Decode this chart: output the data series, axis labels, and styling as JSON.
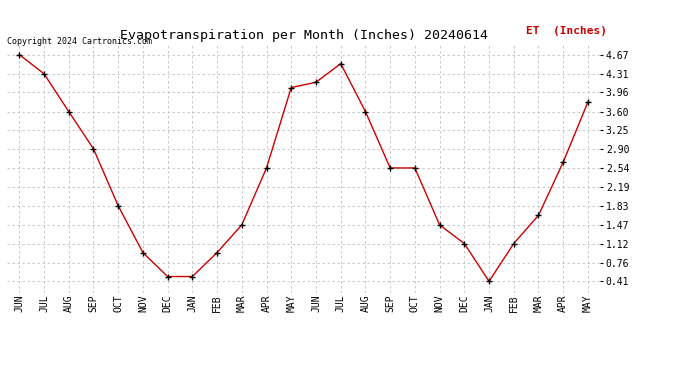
{
  "title": "Evapotranspiration per Month (Inches) 20240614",
  "legend_label": "ET  (Inches)",
  "copyright_text": "Copyright 2024 Cartronics.com",
  "months": [
    "JUN",
    "JUL",
    "AUG",
    "SEP",
    "OCT",
    "NOV",
    "DEC",
    "JAN",
    "FEB",
    "MAR",
    "APR",
    "MAY",
    "JUN",
    "JUL",
    "AUG",
    "SEP",
    "OCT",
    "NOV",
    "DEC",
    "JAN",
    "FEB",
    "MAR",
    "APR",
    "MAY"
  ],
  "values": [
    4.67,
    4.31,
    3.6,
    2.9,
    1.83,
    0.95,
    0.5,
    0.5,
    0.95,
    1.47,
    2.54,
    4.05,
    4.15,
    4.5,
    3.6,
    2.54,
    2.54,
    1.47,
    1.12,
    0.41,
    1.12,
    1.65,
    2.65,
    3.78
  ],
  "yticks": [
    0.41,
    0.76,
    1.12,
    1.47,
    1.83,
    2.19,
    2.54,
    2.9,
    3.25,
    3.6,
    3.96,
    4.31,
    4.67
  ],
  "line_color": "#cc0000",
  "marker_color": "#000000",
  "background_color": "#ffffff",
  "grid_color": "#c0c0c0",
  "title_fontsize": 9.5,
  "legend_fontsize": 8,
  "tick_fontsize": 7,
  "copyright_fontsize": 6,
  "legend_color": "#cc0000",
  "copyright_color": "#000000",
  "ylim": [
    0.2,
    4.85
  ]
}
